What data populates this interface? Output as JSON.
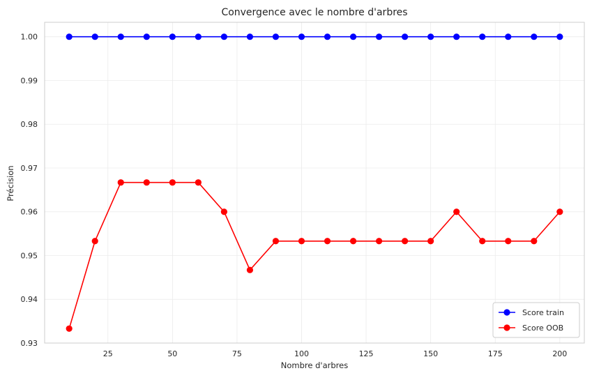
{
  "chart_data": {
    "type": "line",
    "title": "Convergence avec le nombre d'arbres",
    "xlabel": "Nombre d'arbres",
    "ylabel": "Précision",
    "x": [
      10,
      20,
      30,
      40,
      50,
      60,
      70,
      80,
      90,
      100,
      110,
      120,
      130,
      140,
      150,
      160,
      170,
      180,
      190,
      200
    ],
    "series": [
      {
        "name": "Score train",
        "color": "#0000ff",
        "values": [
          1.0,
          1.0,
          1.0,
          1.0,
          1.0,
          1.0,
          1.0,
          1.0,
          1.0,
          1.0,
          1.0,
          1.0,
          1.0,
          1.0,
          1.0,
          1.0,
          1.0,
          1.0,
          1.0,
          1.0
        ]
      },
      {
        "name": "Score OOB",
        "color": "#ff0000",
        "values": [
          0.9333,
          0.9533,
          0.9667,
          0.9667,
          0.9667,
          0.9667,
          0.96,
          0.9467,
          0.9533,
          0.9533,
          0.9533,
          0.9533,
          0.9533,
          0.9533,
          0.9533,
          0.96,
          0.9533,
          0.9533,
          0.9533,
          0.96
        ]
      }
    ],
    "xticks": [
      25,
      50,
      75,
      100,
      125,
      150,
      175,
      200
    ],
    "yticks": [
      0.93,
      0.94,
      0.95,
      0.96,
      0.97,
      0.98,
      0.99,
      1.0
    ],
    "xtick_labels": [
      "25",
      "50",
      "75",
      "100",
      "125",
      "150",
      "175",
      "200"
    ],
    "ytick_labels": [
      "0.93",
      "0.94",
      "0.95",
      "0.96",
      "0.97",
      "0.98",
      "0.99",
      "1.00"
    ],
    "xlim": [
      0.5,
      209.5
    ],
    "ylim": [
      0.93,
      1.0033
    ],
    "grid": true,
    "legend_position": "lower-right"
  }
}
